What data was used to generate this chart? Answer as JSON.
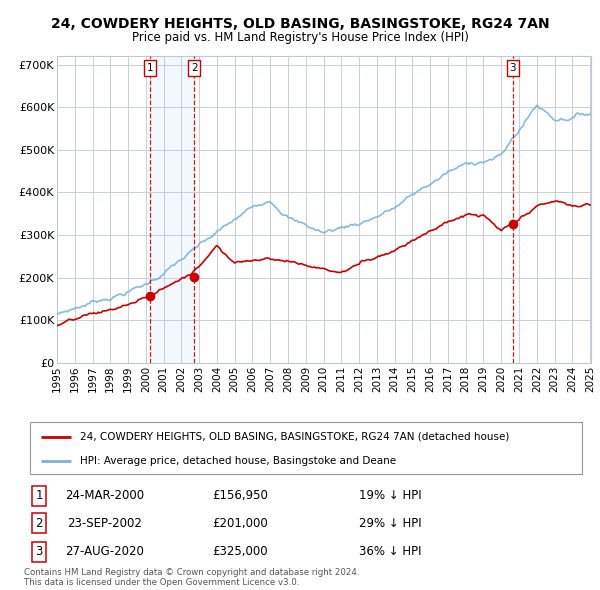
{
  "title_line1": "24, COWDERY HEIGHTS, OLD BASING, BASINGSTOKE, RG24 7AN",
  "title_line2": "Price paid vs. HM Land Registry's House Price Index (HPI)",
  "ylim": [
    0,
    720000
  ],
  "yticks": [
    0,
    100000,
    200000,
    300000,
    400000,
    500000,
    600000,
    700000
  ],
  "ytick_labels": [
    "£0",
    "£100K",
    "£200K",
    "£300K",
    "£400K",
    "£500K",
    "£600K",
    "£700K"
  ],
  "x_start_year": 1995,
  "x_end_year": 2025,
  "xtick_years": [
    1995,
    1996,
    1997,
    1998,
    1999,
    2000,
    2001,
    2002,
    2003,
    2004,
    2005,
    2006,
    2007,
    2008,
    2009,
    2010,
    2011,
    2012,
    2013,
    2014,
    2015,
    2016,
    2017,
    2018,
    2019,
    2020,
    2021,
    2022,
    2023,
    2024,
    2025
  ],
  "hpi_color": "#7ab3d9",
  "price_color": "#cc0000",
  "marker_color": "#cc0000",
  "vline_color": "#cc0000",
  "shade_color": "#daeaf7",
  "grid_color": "#c0c8d5",
  "background_color": "#ffffff",
  "plot_bg_color": "#ffffff",
  "sale1_x": 2000.22,
  "sale1_y": 156950,
  "sale2_x": 2002.72,
  "sale2_y": 201000,
  "sale3_x": 2020.65,
  "sale3_y": 325000,
  "legend_label1": "24, COWDERY HEIGHTS, OLD BASING, BASINGSTOKE, RG24 7AN (detached house)",
  "legend_label2": "HPI: Average price, detached house, Basingstoke and Deane",
  "table_row1_num": "1",
  "table_row1_date": "24-MAR-2000",
  "table_row1_price": "£156,950",
  "table_row1_hpi": "19% ↓ HPI",
  "table_row2_num": "2",
  "table_row2_date": "23-SEP-2002",
  "table_row2_price": "£201,000",
  "table_row2_hpi": "29% ↓ HPI",
  "table_row3_num": "3",
  "table_row3_date": "27-AUG-2020",
  "table_row3_price": "£325,000",
  "table_row3_hpi": "36% ↓ HPI",
  "footnote1": "Contains HM Land Registry data © Crown copyright and database right 2024.",
  "footnote2": "This data is licensed under the Open Government Licence v3.0."
}
